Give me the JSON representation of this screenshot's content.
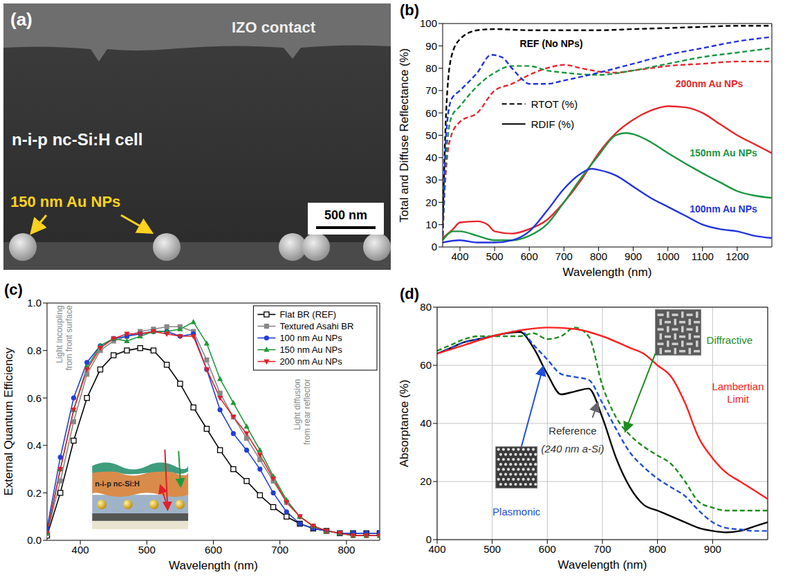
{
  "chart_data": [
    {
      "type": "image",
      "title": "(a)",
      "labels": [
        "IZO contact",
        "n-i-p nc-Si:H cell"
      ],
      "annotation": "150 nm Au NPs",
      "scale_bar": "500 nm"
    },
    {
      "type": "line",
      "title": "(b)",
      "x_label": "Wavelength (nm)",
      "y_label": "Total and Diffuse Reflectance (%)",
      "xlim": [
        350,
        1300
      ],
      "xticks": [
        400,
        500,
        600,
        700,
        800,
        900,
        1000,
        1100,
        1200
      ],
      "ylim": [
        0,
        100
      ],
      "yticks": [
        0,
        10,
        20,
        30,
        40,
        50,
        60,
        70,
        80,
        90,
        100
      ],
      "grid": false,
      "style_legend": [
        {
          "label": "RTOT (%)",
          "line_style": "dashed"
        },
        {
          "label": "RDIF (%)",
          "line_style": "solid"
        }
      ],
      "series": [
        {
          "name": "REF (No NPs)",
          "color": "#000000",
          "line_style": "dashed",
          "x": [
            350,
            360,
            375,
            400,
            450,
            500,
            600,
            700,
            800,
            900,
            1000,
            1100,
            1200,
            1300
          ],
          "values": [
            10,
            60,
            85,
            93,
            97,
            97.5,
            97,
            97,
            97,
            97.5,
            98,
            98.5,
            99,
            99
          ]
        },
        {
          "name": "200nm Au NPs",
          "color": "#e8262b",
          "line_style": "dashed",
          "x": [
            350,
            360,
            375,
            400,
            450,
            500,
            550,
            600,
            650,
            700,
            750,
            800,
            850,
            900,
            950,
            1000,
            1100,
            1200,
            1300
          ],
          "values": [
            5,
            35,
            50,
            56,
            60,
            70,
            73,
            77,
            80,
            81.5,
            80,
            78.5,
            78,
            79,
            80,
            81,
            82,
            83,
            83
          ]
        },
        {
          "name": "200nm Au NPs",
          "color": "#e8262b",
          "line_style": "solid",
          "x": [
            350,
            380,
            400,
            450,
            480,
            500,
            550,
            600,
            650,
            700,
            750,
            800,
            850,
            900,
            950,
            1000,
            1050,
            1100,
            1150,
            1200,
            1250,
            1300
          ],
          "values": [
            4,
            8,
            11,
            11.5,
            10,
            7,
            6,
            8,
            12,
            20,
            30,
            42,
            51,
            57,
            61,
            63,
            62.5,
            60,
            55,
            50,
            46,
            42
          ]
        },
        {
          "name": "150nm Au NPs",
          "color": "#1a9641",
          "line_style": "dashed",
          "x": [
            350,
            360,
            375,
            400,
            450,
            500,
            550,
            600,
            650,
            700,
            800,
            900,
            1000,
            1100,
            1200,
            1300
          ],
          "values": [
            5,
            40,
            58,
            63,
            72,
            78,
            81,
            81,
            79,
            78,
            77,
            79,
            82,
            85,
            87,
            89
          ]
        },
        {
          "name": "150nm Au NPs",
          "color": "#1a9641",
          "line_style": "solid",
          "x": [
            350,
            380,
            400,
            450,
            500,
            550,
            600,
            650,
            700,
            750,
            800,
            850,
            880,
            900,
            950,
            1000,
            1100,
            1150,
            1200,
            1250,
            1300
          ],
          "values": [
            3,
            7,
            7,
            5,
            3,
            3,
            5,
            10,
            20,
            31,
            41,
            50,
            51,
            50.5,
            47,
            42,
            33,
            29,
            25,
            23,
            22
          ]
        },
        {
          "name": "100nm Au NPs",
          "color": "#2233dd",
          "line_style": "dashed",
          "x": [
            350,
            360,
            375,
            400,
            450,
            490,
            520,
            550,
            580,
            600,
            650,
            700,
            800,
            900,
            1000,
            1100,
            1200,
            1300
          ],
          "values": [
            5,
            50,
            66,
            70,
            78,
            86,
            85,
            80,
            75,
            73,
            73,
            74.5,
            78,
            82,
            86,
            89,
            92,
            94
          ]
        },
        {
          "name": "100nm Au NPs",
          "color": "#2233dd",
          "line_style": "solid",
          "x": [
            350,
            400,
            450,
            500,
            550,
            600,
            650,
            700,
            750,
            780,
            800,
            850,
            900,
            950,
            1000,
            1050,
            1100,
            1150,
            1200,
            1250,
            1300
          ],
          "values": [
            2,
            3,
            2,
            2,
            3,
            7,
            16,
            26,
            33,
            35,
            34.5,
            32,
            27,
            22,
            18,
            14,
            10,
            8,
            7,
            5,
            4
          ]
        }
      ]
    },
    {
      "type": "line",
      "title": "(c)",
      "x_label": "Wavelength (nm)",
      "y_label": "External Quantum Efficiency",
      "xlim": [
        350,
        850
      ],
      "xticks": [
        400,
        500,
        600,
        700,
        800
      ],
      "ylim": [
        0,
        1
      ],
      "yticks": [
        {
          "value": 0,
          "label": "0.0"
        },
        0.2,
        0.4,
        0.6,
        0.8,
        {
          "value": 1,
          "label": "1.0"
        }
      ],
      "grid": false,
      "legend": "upper right",
      "annotations": [
        "Light incoupling from front surface",
        "Light diffusion from rear reflector"
      ],
      "inset_label": "n-i-p nc-Si:H",
      "x": [
        350,
        370,
        390,
        410,
        430,
        450,
        470,
        490,
        510,
        530,
        550,
        570,
        590,
        610,
        630,
        650,
        670,
        690,
        710,
        730,
        750,
        770,
        790,
        810,
        830,
        850
      ],
      "series": [
        {
          "name": "Flat BR (REF)",
          "color": "#000000",
          "marker": "open_square",
          "values": [
            0.02,
            0.2,
            0.42,
            0.6,
            0.72,
            0.78,
            0.8,
            0.81,
            0.8,
            0.74,
            0.66,
            0.56,
            0.47,
            0.38,
            0.3,
            0.25,
            0.19,
            0.14,
            0.1,
            0.07,
            0.05,
            0.04,
            0.03,
            0.03,
            0.03,
            0.03
          ]
        },
        {
          "name": "Textured Asahi BR",
          "color": "#888888",
          "marker": "square",
          "values": [
            0.03,
            0.25,
            0.5,
            0.7,
            0.8,
            0.84,
            0.86,
            0.88,
            0.89,
            0.9,
            0.9,
            0.88,
            0.76,
            0.62,
            0.52,
            0.43,
            0.34,
            0.25,
            0.16,
            0.1,
            0.06,
            0.04,
            0.03,
            0.02,
            0.02,
            0.02
          ]
        },
        {
          "name": "100 nm Au NPs",
          "color": "#1f3fd6",
          "marker": "circle",
          "values": [
            0.05,
            0.35,
            0.6,
            0.75,
            0.82,
            0.85,
            0.86,
            0.87,
            0.88,
            0.88,
            0.86,
            0.87,
            0.72,
            0.55,
            0.45,
            0.38,
            0.3,
            0.2,
            0.12,
            0.07,
            0.05,
            0.04,
            0.03,
            0.03,
            0.03,
            0.03
          ]
        },
        {
          "name": "150 nm Au NPs",
          "color": "#1f9a3a",
          "marker": "triangle_up",
          "values": [
            0.03,
            0.3,
            0.55,
            0.73,
            0.82,
            0.85,
            0.84,
            0.86,
            0.88,
            0.88,
            0.89,
            0.92,
            0.83,
            0.68,
            0.58,
            0.48,
            0.38,
            0.27,
            0.17,
            0.1,
            0.06,
            0.04,
            0.03,
            0.02,
            0.02,
            0.02
          ]
        },
        {
          "name": "200 nm Au NPs",
          "color": "#e0202a",
          "marker": "triangle_down",
          "values": [
            0.03,
            0.3,
            0.55,
            0.72,
            0.81,
            0.85,
            0.87,
            0.87,
            0.88,
            0.87,
            0.86,
            0.86,
            0.72,
            0.6,
            0.52,
            0.45,
            0.36,
            0.26,
            0.16,
            0.1,
            0.06,
            0.04,
            0.03,
            0.02,
            0.02,
            0.02
          ]
        }
      ]
    },
    {
      "type": "line",
      "title": "(d)",
      "x_label": "Wavelength (nm)",
      "y_label": "Absorptance (%)",
      "xlim": [
        400,
        1000
      ],
      "xticks": [
        400,
        500,
        600,
        700,
        800,
        900
      ],
      "ylim": [
        0,
        80
      ],
      "yticks": [
        0,
        20,
        40,
        60,
        80
      ],
      "grid": true,
      "annotations": [
        "(240 nm a-Si)"
      ],
      "series": [
        {
          "name": "Reference",
          "color": "#000000",
          "line_style": "solid",
          "x": [
            400,
            425,
            450,
            475,
            500,
            525,
            550,
            575,
            600,
            625,
            650,
            675,
            700,
            725,
            750,
            775,
            800,
            825,
            850,
            875,
            900,
            925,
            950,
            975,
            1000
          ],
          "values": [
            64,
            66,
            68,
            69,
            70,
            71,
            71.5,
            66,
            57,
            50,
            51,
            52,
            42,
            28,
            18,
            12,
            10,
            8,
            6,
            4,
            3,
            2.5,
            3,
            4.5,
            6
          ]
        },
        {
          "name": "Plasmonic",
          "color": "#1f4fd8",
          "line_style": "dashed",
          "x": [
            400,
            425,
            450,
            475,
            500,
            525,
            550,
            575,
            600,
            625,
            650,
            675,
            700,
            725,
            750,
            775,
            800,
            825,
            850,
            875,
            900,
            925,
            950,
            975,
            1000
          ],
          "values": [
            64,
            66,
            68,
            69,
            70,
            71,
            72,
            67,
            62,
            57,
            56,
            55,
            47,
            38,
            30,
            25,
            21,
            18,
            15,
            10,
            6,
            4,
            3.5,
            3,
            3
          ]
        },
        {
          "name": "Diffractive",
          "color": "#1e8c1e",
          "line_style": "dashed",
          "x": [
            400,
            425,
            450,
            475,
            500,
            525,
            550,
            575,
            600,
            625,
            650,
            675,
            700,
            725,
            750,
            775,
            800,
            825,
            850,
            875,
            900,
            925,
            950,
            975,
            1000
          ],
          "values": [
            65,
            67,
            69,
            70,
            70,
            70,
            70,
            71,
            69,
            70,
            73,
            70,
            53,
            42,
            36,
            32,
            29,
            26,
            20,
            13,
            11,
            10,
            10,
            10,
            10
          ]
        },
        {
          "name": "Lambertian Limit",
          "color": "#ff2020",
          "line_style": "solid",
          "x": [
            400,
            450,
            500,
            550,
            600,
            650,
            700,
            750,
            775,
            800,
            825,
            850,
            875,
            900,
            925,
            950,
            975,
            1000
          ],
          "values": [
            64,
            67,
            70,
            72,
            73,
            72.5,
            70,
            66,
            64,
            60,
            56,
            47,
            35,
            28,
            23,
            20,
            17,
            14
          ]
        }
      ]
    }
  ]
}
